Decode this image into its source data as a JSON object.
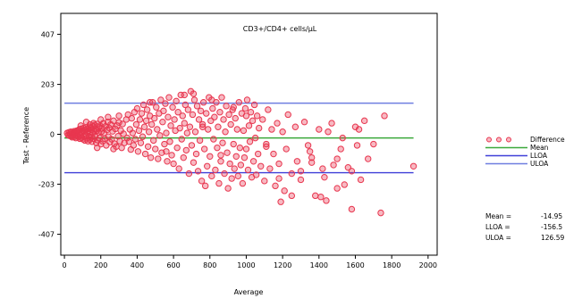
{
  "chart_data": {
    "type": "scatter",
    "title": "CD3+/CD4+ cells/µL",
    "xlabel": "Average",
    "ylabel": "Test - Reference",
    "xlim": [
      -20,
      2050
    ],
    "ylim": [
      -492,
      492
    ],
    "x_ticks": [
      "0",
      "200",
      "400",
      "600",
      "800",
      "1000",
      "1200",
      "1400",
      "1600",
      "1800",
      "2000"
    ],
    "x_tick_values": [
      0,
      200,
      400,
      600,
      800,
      1000,
      1200,
      1400,
      1600,
      1800,
      2000
    ],
    "y_ticks": [
      "407",
      "203",
      "0",
      "-203",
      "-407"
    ],
    "y_tick_values": [
      407,
      203,
      0,
      -203,
      -407
    ],
    "grid": false,
    "legend_position": "right",
    "series": [
      {
        "name": "Difference",
        "kind": "points",
        "color": "#e8364f",
        "points": [
          [
            15,
            5
          ],
          [
            20,
            -3
          ],
          [
            25,
            8
          ],
          [
            28,
            -6
          ],
          [
            30,
            2
          ],
          [
            35,
            10
          ],
          [
            38,
            -8
          ],
          [
            40,
            4
          ],
          [
            42,
            -12
          ],
          [
            45,
            6
          ],
          [
            48,
            0
          ],
          [
            50,
            -4
          ],
          [
            52,
            12
          ],
          [
            55,
            -10
          ],
          [
            58,
            8
          ],
          [
            60,
            3
          ],
          [
            62,
            -15
          ],
          [
            65,
            14
          ],
          [
            68,
            -2
          ],
          [
            70,
            9
          ],
          [
            72,
            -7
          ],
          [
            75,
            16
          ],
          [
            78,
            -12
          ],
          [
            80,
            5
          ],
          [
            82,
            20
          ],
          [
            85,
            -18
          ],
          [
            88,
            10
          ],
          [
            90,
            -5
          ],
          [
            92,
            22
          ],
          [
            95,
            -14
          ],
          [
            98,
            7
          ],
          [
            100,
            15
          ],
          [
            102,
            -20
          ],
          [
            105,
            25
          ],
          [
            108,
            -9
          ],
          [
            110,
            12
          ],
          [
            112,
            -25
          ],
          [
            115,
            18
          ],
          [
            118,
            -3
          ],
          [
            120,
            28
          ],
          [
            122,
            -16
          ],
          [
            125,
            9
          ],
          [
            128,
            22
          ],
          [
            130,
            -28
          ],
          [
            132,
            14
          ],
          [
            135,
            -8
          ],
          [
            138,
            30
          ],
          [
            140,
            -22
          ],
          [
            142,
            6
          ],
          [
            145,
            26
          ],
          [
            148,
            -12
          ],
          [
            150,
            18
          ],
          [
            152,
            -30
          ],
          [
            155,
            4
          ],
          [
            158,
            32
          ],
          [
            160,
            -18
          ],
          [
            163,
            12
          ],
          [
            166,
            38
          ],
          [
            170,
            -8
          ],
          [
            172,
            20
          ],
          [
            175,
            -35
          ],
          [
            178,
            15
          ],
          [
            180,
            42
          ],
          [
            183,
            -24
          ],
          [
            186,
            8
          ],
          [
            190,
            28
          ],
          [
            193,
            -15
          ],
          [
            196,
            35
          ],
          [
            200,
            -40
          ],
          [
            203,
            10
          ],
          [
            206,
            24
          ],
          [
            210,
            -28
          ],
          [
            214,
            45
          ],
          [
            218,
            5
          ],
          [
            222,
            -18
          ],
          [
            226,
            32
          ],
          [
            230,
            -45
          ],
          [
            234,
            18
          ],
          [
            238,
            50
          ],
          [
            242,
            -10
          ],
          [
            246,
            26
          ],
          [
            250,
            -32
          ],
          [
            255,
            40
          ],
          [
            260,
            -20
          ],
          [
            265,
            12
          ],
          [
            270,
            55
          ],
          [
            275,
            -38
          ],
          [
            280,
            22
          ],
          [
            285,
            -50
          ],
          [
            290,
            35
          ],
          [
            295,
            -8
          ],
          [
            300,
            48
          ],
          [
            305,
            -28
          ],
          [
            310,
            15
          ],
          [
            315,
            -55
          ],
          [
            320,
            42
          ],
          [
            325,
            2
          ],
          [
            330,
            -35
          ],
          [
            340,
            60
          ],
          [
            345,
            -15
          ],
          [
            160,
            45
          ],
          [
            120,
            50
          ],
          [
            200,
            60
          ],
          [
            90,
            35
          ],
          [
            240,
            70
          ],
          [
            180,
            -55
          ],
          [
            300,
            75
          ],
          [
            270,
            -60
          ],
          [
            140,
            40
          ],
          [
            350,
            80
          ],
          [
            355,
            -30
          ],
          [
            360,
            20
          ],
          [
            365,
            -62
          ],
          [
            370,
            65
          ],
          [
            375,
            5
          ],
          [
            380,
            -45
          ],
          [
            385,
            90
          ],
          [
            390,
            -20
          ],
          [
            395,
            40
          ],
          [
            400,
            105
          ],
          [
            405,
            -70
          ],
          [
            410,
            15
          ],
          [
            415,
            60
          ],
          [
            420,
            -35
          ],
          [
            425,
            85
          ],
          [
            430,
            -10
          ],
          [
            435,
            120
          ],
          [
            440,
            30
          ],
          [
            445,
            -80
          ],
          [
            450,
            55
          ],
          [
            455,
            100
          ],
          [
            460,
            -50
          ],
          [
            465,
            10
          ],
          [
            470,
            75
          ],
          [
            475,
            -95
          ],
          [
            480,
            40
          ],
          [
            485,
            130
          ],
          [
            490,
            -25
          ],
          [
            495,
            65
          ],
          [
            500,
            -60
          ],
          [
            505,
            110
          ],
          [
            510,
            20
          ],
          [
            515,
            -100
          ],
          [
            520,
            85
          ],
          [
            525,
            -5
          ],
          [
            530,
            140
          ],
          [
            535,
            -75
          ],
          [
            540,
            50
          ],
          [
            545,
            95
          ],
          [
            550,
            -40
          ],
          [
            555,
            125
          ],
          [
            560,
            5
          ],
          [
            565,
            -110
          ],
          [
            570,
            70
          ],
          [
            575,
            150
          ],
          [
            580,
            -30
          ],
          [
            585,
            35
          ],
          [
            590,
            -85
          ],
          [
            595,
            110
          ],
          [
            600,
            -120
          ],
          [
            605,
            60
          ],
          [
            610,
            15
          ],
          [
            615,
            135
          ],
          [
            620,
            -55
          ],
          [
            625,
            90
          ],
          [
            630,
            -140
          ],
          [
            635,
            25
          ],
          [
            640,
            160
          ],
          [
            645,
            -20
          ],
          [
            650,
            75
          ],
          [
            655,
            -95
          ],
          [
            660,
            45
          ],
          [
            665,
            120
          ],
          [
            670,
            -65
          ],
          [
            675,
            5
          ],
          [
            680,
            100
          ],
          [
            685,
            -160
          ],
          [
            690,
            30
          ],
          [
            695,
            175
          ],
          [
            700,
            -45
          ],
          [
            705,
            80
          ],
          [
            710,
            -115
          ],
          [
            715,
            140
          ],
          [
            720,
            10
          ],
          [
            725,
            -80
          ],
          [
            730,
            115
          ],
          [
            735,
            -150
          ],
          [
            740,
            60
          ],
          [
            745,
            -25
          ],
          [
            750,
            95
          ],
          [
            755,
            -190
          ],
          [
            760,
            40
          ],
          [
            765,
            130
          ],
          [
            770,
            -60
          ],
          [
            775,
            -210
          ],
          [
            780,
            85
          ],
          [
            785,
            -130
          ],
          [
            790,
            20
          ],
          [
            795,
            150
          ],
          [
            800,
            -90
          ],
          [
            805,
            55
          ],
          [
            810,
            -170
          ],
          [
            815,
            105
          ],
          [
            820,
            -20
          ],
          [
            825,
            70
          ],
          [
            830,
            -145
          ],
          [
            835,
            130
          ],
          [
            840,
            -55
          ],
          [
            845,
            30
          ],
          [
            850,
            -200
          ],
          [
            855,
            90
          ],
          [
            860,
            -110
          ],
          [
            865,
            150
          ],
          [
            870,
            -35
          ],
          [
            875,
            60
          ],
          [
            880,
            -160
          ],
          [
            885,
            10
          ],
          [
            890,
            115
          ],
          [
            895,
            -75
          ],
          [
            900,
            -220
          ],
          [
            905,
            80
          ],
          [
            910,
            -120
          ],
          [
            915,
            40
          ],
          [
            920,
            -180
          ],
          [
            925,
            100
          ],
          [
            930,
            -40
          ],
          [
            935,
            -140
          ],
          [
            940,
            65
          ],
          [
            945,
            -90
          ],
          [
            950,
            20
          ],
          [
            955,
            -170
          ],
          [
            960,
            130
          ],
          [
            965,
            -55
          ],
          [
            970,
            -125
          ],
          [
            975,
            85
          ],
          [
            980,
            -200
          ],
          [
            985,
            15
          ],
          [
            990,
            -95
          ],
          [
            995,
            105
          ],
          [
            1000,
            -60
          ],
          [
            1005,
            140
          ],
          [
            1010,
            -145
          ],
          [
            1015,
            35
          ],
          [
            1020,
            -30
          ],
          [
            1025,
            90
          ],
          [
            1030,
            -175
          ],
          [
            1035,
            55
          ],
          [
            1040,
            -110
          ],
          [
            1045,
            120
          ],
          [
            1050,
            -15
          ],
          [
            1055,
            -165
          ],
          [
            1060,
            75
          ],
          [
            1065,
            -80
          ],
          [
            1070,
            25
          ],
          [
            1080,
            -130
          ],
          [
            1090,
            60
          ],
          [
            1100,
            -190
          ],
          [
            1110,
            -50
          ],
          [
            1120,
            100
          ],
          [
            1130,
            -140
          ],
          [
            1140,
            20
          ],
          [
            1150,
            -80
          ],
          [
            1160,
            -210
          ],
          [
            1170,
            45
          ],
          [
            1180,
            -120
          ],
          [
            1190,
            -275
          ],
          [
            1200,
            10
          ],
          [
            1210,
            -230
          ],
          [
            1220,
            -60
          ],
          [
            1230,
            80
          ],
          [
            1250,
            -160
          ],
          [
            1270,
            30
          ],
          [
            1280,
            -110
          ],
          [
            1300,
            -185
          ],
          [
            1320,
            50
          ],
          [
            1340,
            -45
          ],
          [
            1360,
            -95
          ],
          [
            1380,
            -250
          ],
          [
            1400,
            20
          ],
          [
            1420,
            -140
          ],
          [
            1440,
            -270
          ],
          [
            1470,
            45
          ],
          [
            1500,
            -100
          ],
          [
            1520,
            -60
          ],
          [
            1540,
            -205
          ],
          [
            1560,
            -135
          ],
          [
            1580,
            -305
          ],
          [
            1600,
            30
          ],
          [
            1630,
            -185
          ],
          [
            1650,
            55
          ],
          [
            1700,
            -40
          ],
          [
            1740,
            -320
          ],
          [
            1760,
            75
          ],
          [
            1920,
            -130
          ],
          [
            1430,
            -175
          ],
          [
            1360,
            -115
          ],
          [
            1450,
            10
          ],
          [
            1530,
            -15
          ],
          [
            1110,
            -40
          ],
          [
            710,
            165
          ],
          [
            760,
            30
          ],
          [
            810,
            140
          ],
          [
            860,
            -85
          ],
          [
            660,
            160
          ],
          [
            930,
            110
          ],
          [
            1000,
            75
          ],
          [
            560,
            -70
          ],
          [
            470,
            130
          ],
          [
            1180,
            -180
          ],
          [
            1250,
            -250
          ],
          [
            1410,
            -255
          ],
          [
            1610,
            -45
          ],
          [
            1670,
            -100
          ],
          [
            1500,
            -220
          ],
          [
            1300,
            -150
          ],
          [
            1350,
            -70
          ],
          [
            1580,
            -150
          ],
          [
            1480,
            -125
          ],
          [
            1620,
            20
          ]
        ]
      },
      {
        "name": "Mean",
        "kind": "hline",
        "value": -14.95,
        "color": "#3aa83a"
      },
      {
        "name": "LLOA",
        "kind": "hline",
        "value": -156.5,
        "color": "#3f3fd8"
      },
      {
        "name": "ULOA",
        "kind": "hline",
        "value": 126.59,
        "color": "#6f7ee0"
      }
    ],
    "stats": [
      {
        "label": "Mean =",
        "value": "-14.95"
      },
      {
        "label": "LLOA =",
        "value": "-156.5"
      },
      {
        "label": "ULOA =",
        "value": "126.59"
      }
    ]
  }
}
